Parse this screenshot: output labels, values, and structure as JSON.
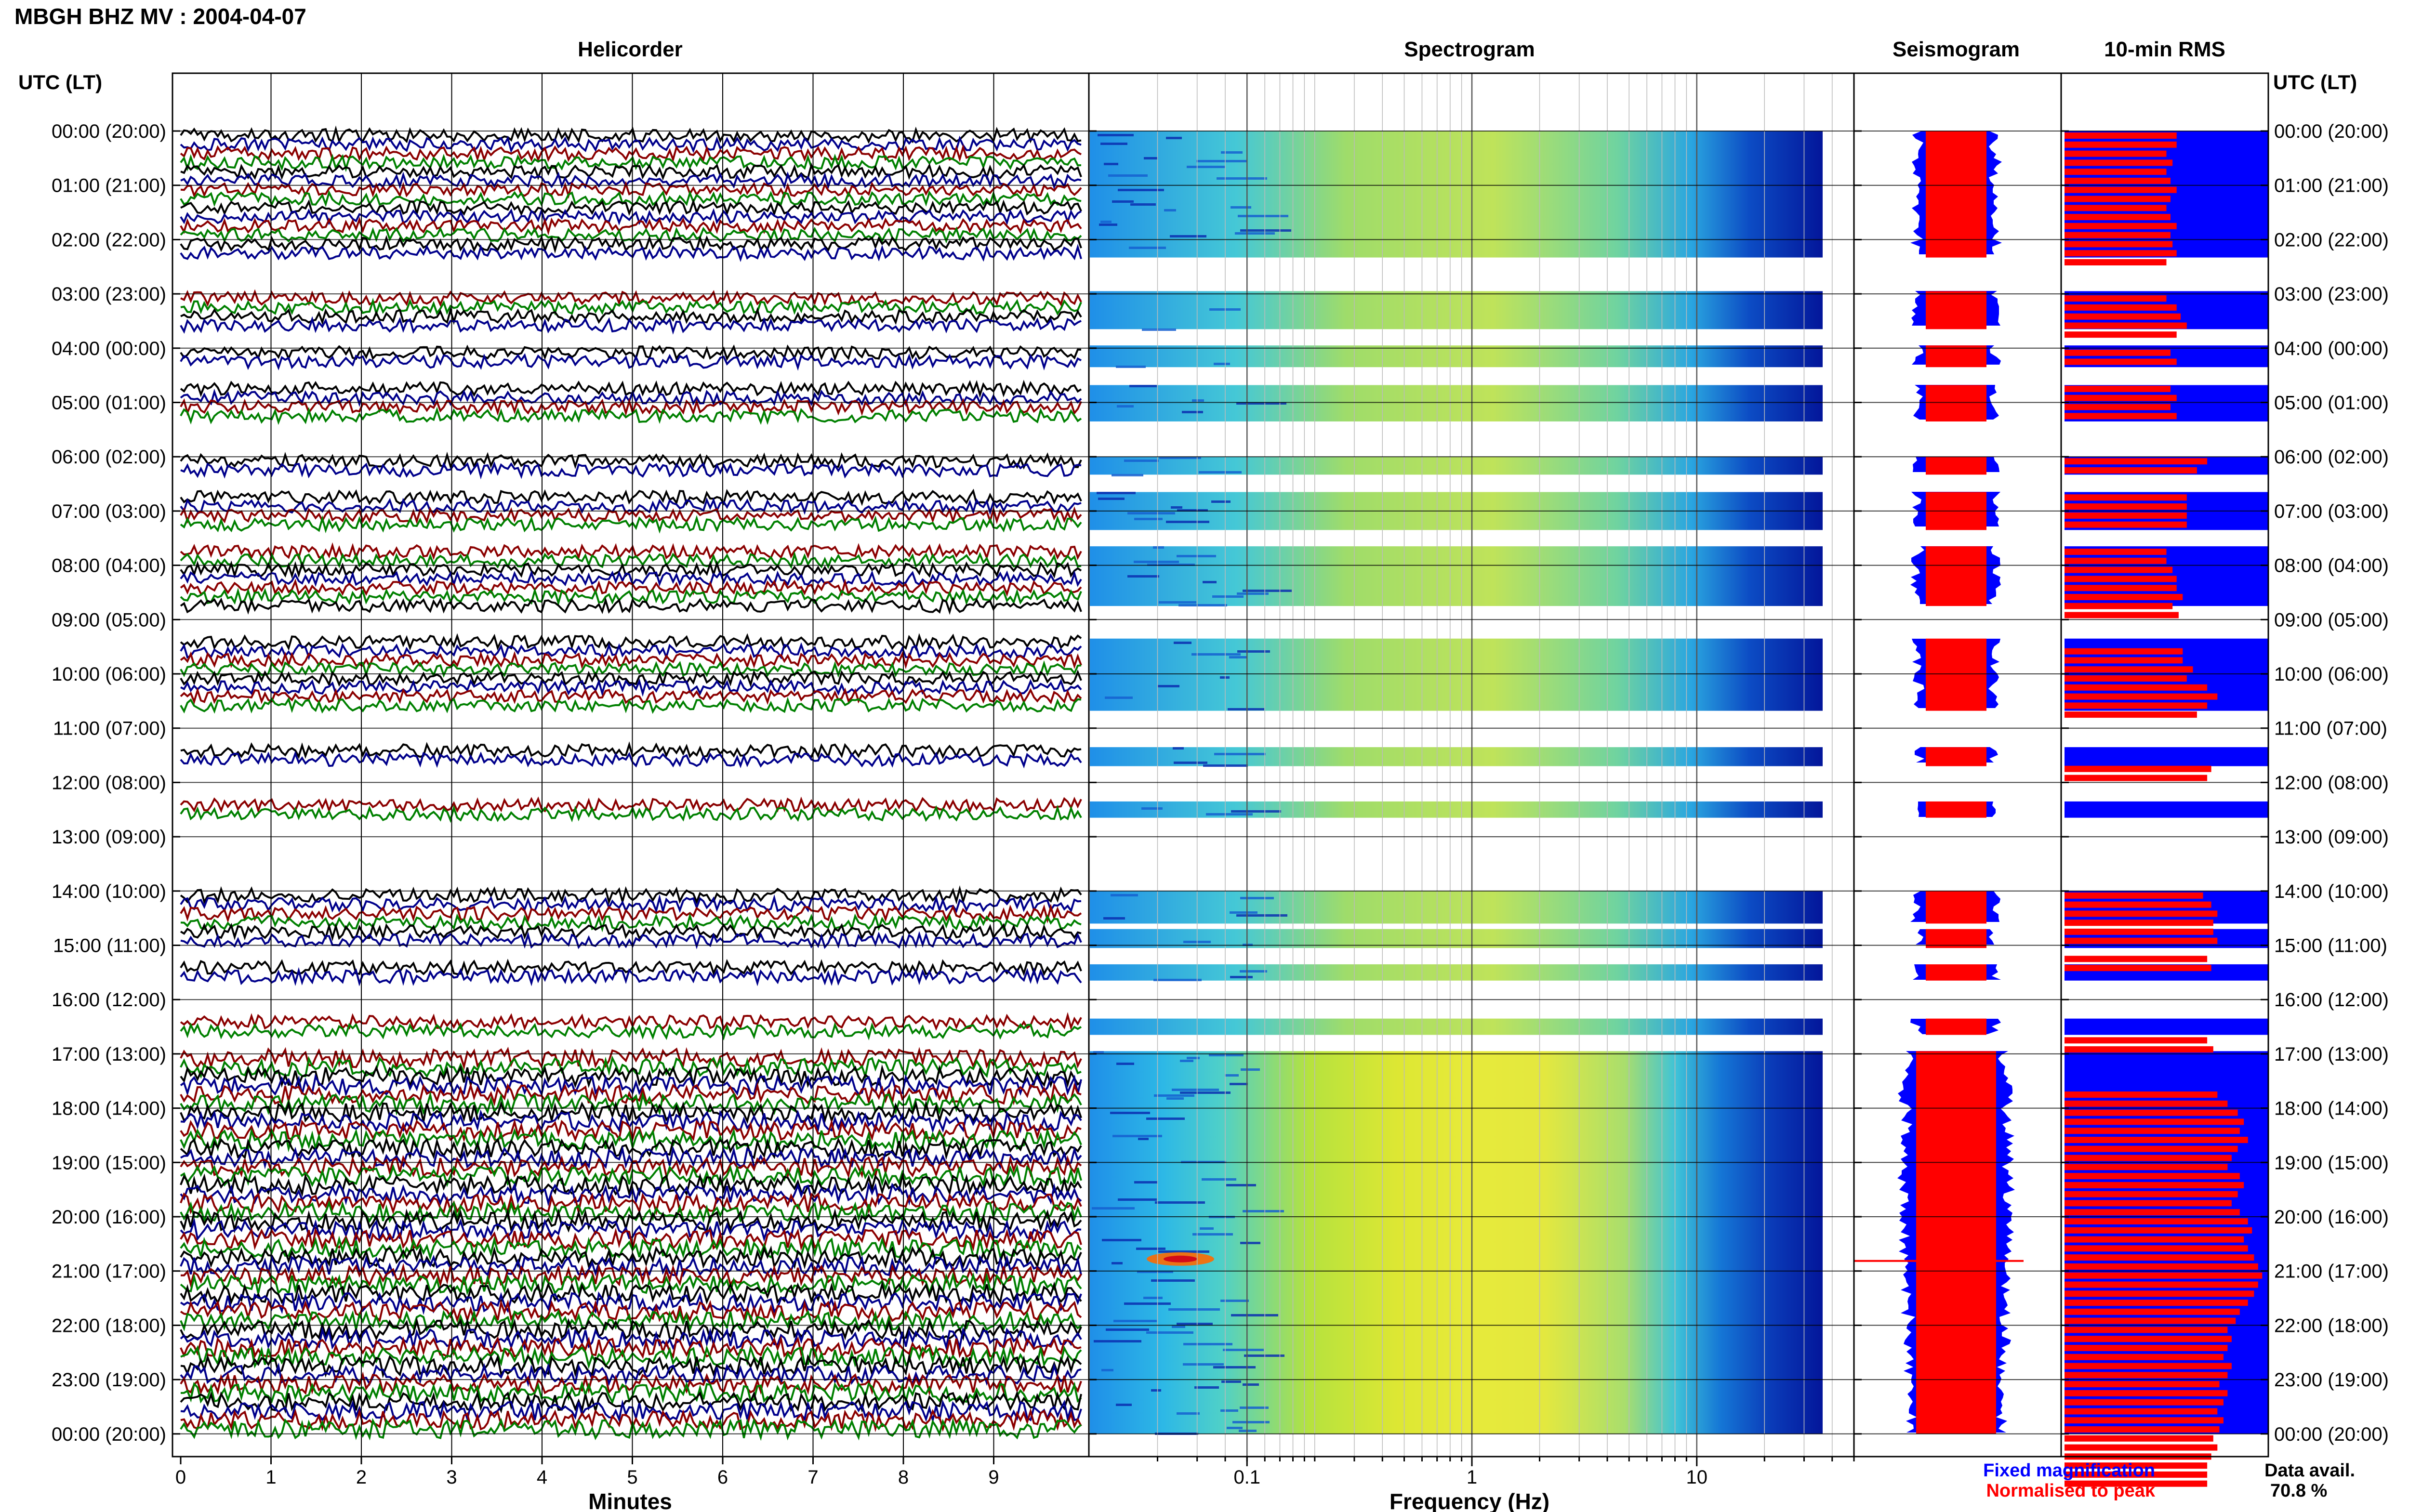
{
  "chart_data": {
    "type": "helicorder",
    "title": "MBGH BHZ MV : 2004-04-07",
    "colors": {
      "trace_cycle": [
        "#000000",
        "#00008b",
        "#8b0000",
        "#008000"
      ],
      "fixed_magnification": "#0000ff",
      "normalised_to_peak": "#ff0000",
      "axis": "#000000"
    },
    "time_axis": {
      "label": "UTC (LT)",
      "label_right": "UTC (LT)",
      "range_utc_hours": [
        0,
        24
      ],
      "ticks": [
        "00:00 (20:00)",
        "01:00 (21:00)",
        "02:00 (22:00)",
        "03:00 (23:00)",
        "04:00 (00:00)",
        "05:00 (01:00)",
        "06:00 (02:00)",
        "07:00 (03:00)",
        "08:00 (04:00)",
        "09:00 (05:00)",
        "10:00 (06:00)",
        "11:00 (07:00)",
        "12:00 (08:00)",
        "13:00 (09:00)",
        "14:00 (10:00)",
        "15:00 (11:00)",
        "16:00 (12:00)",
        "17:00 (13:00)",
        "18:00 (14:00)",
        "19:00 (15:00)",
        "20:00 (16:00)",
        "21:00 (17:00)",
        "22:00 (18:00)",
        "23:00 (19:00)",
        "00:00 (20:00)"
      ]
    },
    "data_segments_hours": [
      [
        0.0,
        2.33
      ],
      [
        2.95,
        3.65
      ],
      [
        3.95,
        4.35
      ],
      [
        4.68,
        5.35
      ],
      [
        6.0,
        6.33
      ],
      [
        6.65,
        7.35
      ],
      [
        7.65,
        8.75
      ],
      [
        9.35,
        10.68
      ],
      [
        11.35,
        11.7
      ],
      [
        12.35,
        12.65
      ],
      [
        14.0,
        14.6
      ],
      [
        14.7,
        15.05
      ],
      [
        15.35,
        15.65
      ],
      [
        16.35,
        16.65
      ],
      [
        16.95,
        24.0
      ]
    ],
    "event_hour": 20.85,
    "panels": [
      {
        "id": "helicorder",
        "title": "Helicorder",
        "xlabel": "Minutes",
        "xlim": [
          0,
          10
        ],
        "xticks": [
          "0",
          "1",
          "2",
          "3",
          "4",
          "5",
          "6",
          "7",
          "8",
          "9"
        ]
      },
      {
        "id": "spectrogram",
        "title": "Spectrogram",
        "xlabel": "Frequency (Hz)",
        "x_scale": "log",
        "xlim_hz": [
          0.02,
          50
        ],
        "xticks": [
          "0.1",
          "1",
          "10"
        ]
      },
      {
        "id": "seismogram",
        "title": "Seismogram"
      },
      {
        "id": "rms",
        "title": "10-min RMS"
      }
    ],
    "rms_ten_min_relative": [
      0.55,
      0.55,
      0.5,
      0.53,
      0.5,
      0.52,
      0.55,
      0.52,
      0.5,
      0.52,
      0.55,
      0.52,
      0.53,
      0.55,
      0.5,
      0.0,
      0.0,
      0.0,
      0.5,
      0.55,
      0.57,
      0.6,
      0.55,
      0.0,
      0.52,
      0.55,
      0.0,
      0.0,
      0.52,
      0.55,
      0.52,
      0.55,
      0.0,
      0.0,
      0.0,
      0.0,
      0.7,
      0.65,
      0.0,
      0.0,
      0.6,
      0.6,
      0.6,
      0.6,
      0.0,
      0.0,
      0.5,
      0.5,
      0.53,
      0.55,
      0.55,
      0.58,
      0.53,
      0.56,
      0.0,
      0.0,
      0.0,
      0.58,
      0.58,
      0.63,
      0.6,
      0.7,
      0.75,
      0.7,
      0.65,
      0.0,
      0.0,
      0.0,
      0.0,
      0.0,
      0.72,
      0.7,
      0.0,
      0.0,
      0.0,
      0.0,
      0.0,
      0.0,
      0.0,
      0.0,
      0.0,
      0.0,
      0.0,
      0.0,
      0.68,
      0.72,
      0.75,
      0.73,
      0.73,
      0.75,
      0.0,
      0.7,
      0.72,
      0.0,
      0.0,
      0.0,
      0.0,
      0.0,
      0.0,
      0.0,
      0.7,
      0.73,
      0.0,
      0.0,
      0.0,
      0.0,
      0.75,
      0.8,
      0.85,
      0.88,
      0.86,
      0.9,
      0.85,
      0.82,
      0.8,
      0.86,
      0.88,
      0.85,
      0.82,
      0.86,
      0.9,
      0.92,
      0.88,
      0.9,
      0.93,
      0.95,
      0.97,
      0.95,
      0.93,
      0.9,
      0.86,
      0.84,
      0.8,
      0.82,
      0.8,
      0.78,
      0.82,
      0.8,
      0.76,
      0.8,
      0.78,
      0.75,
      0.78,
      0.76,
      0.73,
      0.75,
      0.72,
      0.7,
      0.7,
      0.7
    ],
    "legend": {
      "fixed_magnification": "Fixed magnification",
      "normalised_to_peak": "Normalised to peak"
    },
    "data_availability": {
      "label": "Data avail.",
      "value": "70.8 %"
    }
  }
}
